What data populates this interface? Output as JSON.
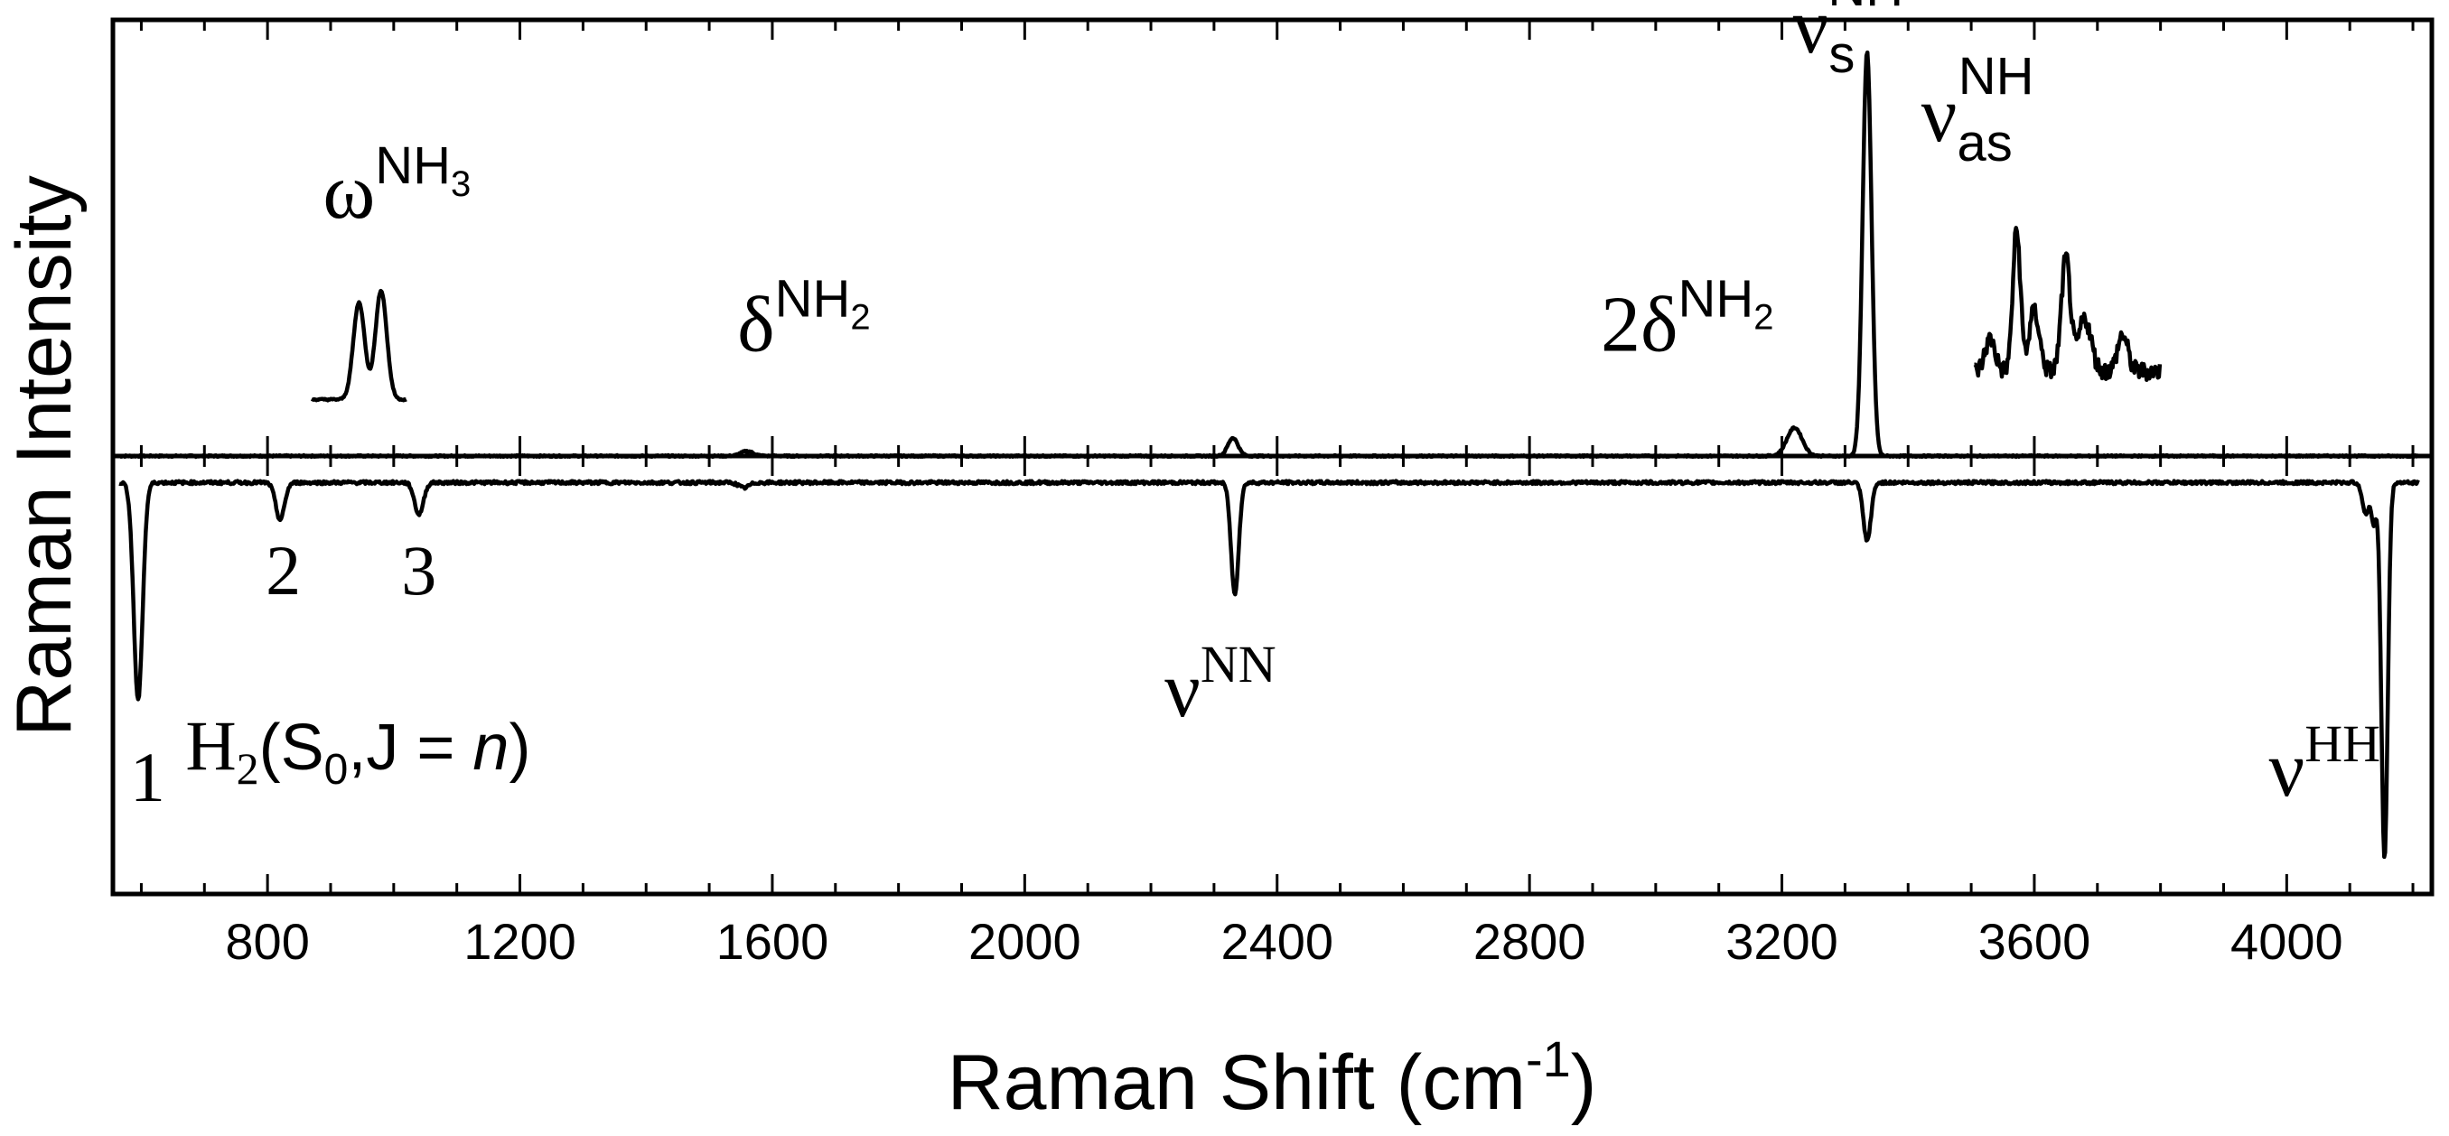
{
  "chart_data": {
    "type": "line",
    "xlabel_base": "Raman Shift (cm",
    "xlabel_sup": "-1",
    "xlabel_close": ")",
    "ylabel": "Raman Intensity",
    "xlim": [
      555,
      4230
    ],
    "x_ticks": [
      800,
      1200,
      1600,
      2000,
      2400,
      2800,
      3200,
      3600,
      4000
    ],
    "x_tick_labels": [
      "800",
      "1200",
      "1600",
      "2000",
      "2400",
      "2800",
      "3200",
      "3600",
      "4000"
    ],
    "panels": [
      {
        "name": "top",
        "ylim": [
          0,
          1.08
        ],
        "baseline": 0.0,
        "series": [
          {
            "peaks": [
              {
                "x": 1560,
                "h": 0.012,
                "w": 10
              },
              {
                "x": 2330,
                "h": 0.045,
                "w": 8
              },
              {
                "x": 3220,
                "h": 0.07,
                "w": 12
              },
              {
                "x": 3335,
                "h": 1.0,
                "w": 7
              }
            ]
          },
          {
            "segment": true,
            "x_range": [
              870,
              1020
            ],
            "offset": 0.14,
            "peaks": [
              {
                "x": 945,
                "h": 0.24,
                "w": 9
              },
              {
                "x": 980,
                "h": 0.27,
                "w": 9
              }
            ]
          },
          {
            "segment": true,
            "x_range": [
              3505,
              3800
            ],
            "offset": 0.21,
            "noise": 0.045,
            "peaks": [
              {
                "x": 3530,
                "h": 0.08,
                "w": 8
              },
              {
                "x": 3572,
                "h": 0.35,
                "w": 6
              },
              {
                "x": 3600,
                "h": 0.15,
                "w": 8
              },
              {
                "x": 3650,
                "h": 0.28,
                "w": 7
              },
              {
                "x": 3680,
                "h": 0.13,
                "w": 10
              },
              {
                "x": 3740,
                "h": 0.09,
                "w": 8
              }
            ]
          }
        ],
        "annotations": [
          {
            "id": "omega",
            "x": 1005,
            "y": 0.59,
            "base": "ω",
            "sup": "NH",
            "sup_sub": "3"
          },
          {
            "id": "delta",
            "x": 1650,
            "y": 0.26,
            "base": "δ",
            "sup": "NH",
            "sup_sub": "2"
          },
          {
            "id": "two-delta",
            "x": 3050,
            "y": 0.26,
            "base": "2δ",
            "sup": "NH",
            "sup_sub": "2"
          },
          {
            "id": "nu-s",
            "x": 3305,
            "y": 1.0,
            "base": "ν",
            "sup": "NH",
            "sub": "s"
          },
          {
            "id": "nu-as",
            "x": 3510,
            "y": 0.78,
            "base": "ν",
            "sup": "NH",
            "sub": "as"
          }
        ]
      },
      {
        "name": "bottom",
        "ylim": [
          -1.55,
          0.1
        ],
        "baseline": 0.0,
        "series": [
          {
            "peaks": [
              {
                "x": 595,
                "h": -0.82,
                "w": 7
              },
              {
                "x": 820,
                "h": -0.14,
                "w": 7
              },
              {
                "x": 1040,
                "h": -0.12,
                "w": 7
              },
              {
                "x": 1555,
                "h": -0.02,
                "w": 8
              },
              {
                "x": 2333,
                "h": -0.42,
                "w": 6
              },
              {
                "x": 3335,
                "h": -0.22,
                "w": 6
              },
              {
                "x": 4125,
                "h": -0.12,
                "w": 5
              },
              {
                "x": 4138,
                "h": -0.15,
                "w": 4
              },
              {
                "x": 4155,
                "h": -1.42,
                "w": 5
              }
            ]
          }
        ],
        "annotations": [
          {
            "id": "h2-label",
            "x": 670,
            "y": -1.08
          },
          {
            "id": "nu-nn",
            "x": 2310,
            "y": -0.88,
            "base": "ν",
            "sup": "NN"
          },
          {
            "id": "nu-hh",
            "x": 4060,
            "y": -1.18,
            "base": "ν",
            "sup": "HH"
          }
        ],
        "peak_labels": [
          {
            "x": 610,
            "y": -1.2,
            "text": "1"
          },
          {
            "x": 825,
            "y": -0.42,
            "text": "2"
          },
          {
            "x": 1040,
            "y": -0.42,
            "text": "3"
          }
        ]
      }
    ]
  }
}
